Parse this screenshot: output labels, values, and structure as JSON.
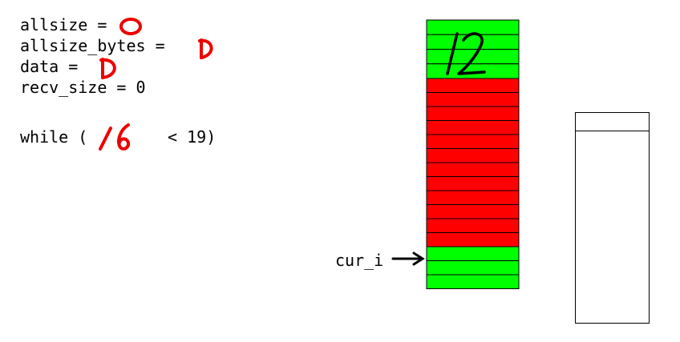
{
  "code": {
    "line1_text": "allsize =",
    "line2_text": "allsize_bytes =",
    "line3_text": "data =",
    "line4_text": "recv_size = 0",
    "while_prefix": "while (",
    "while_suffix": " < 19)"
  },
  "handwriting": {
    "allsize_value": "0",
    "allsize_bytes_value": "D",
    "data_value": "D",
    "while_value": "16",
    "block_number": "12"
  },
  "pointer": {
    "label": "cur_i"
  },
  "buffer": {
    "segments": [
      {
        "kind": "filled-top",
        "color": "#00ff00",
        "rows": 4
      },
      {
        "kind": "pending",
        "color": "#ff0000",
        "rows": 12
      },
      {
        "kind": "filled-bottom",
        "color": "#00ff00",
        "rows": 3
      }
    ]
  },
  "colors": {
    "annotation": "#ee0000",
    "green": "#00ff00",
    "red": "#ff0000"
  }
}
